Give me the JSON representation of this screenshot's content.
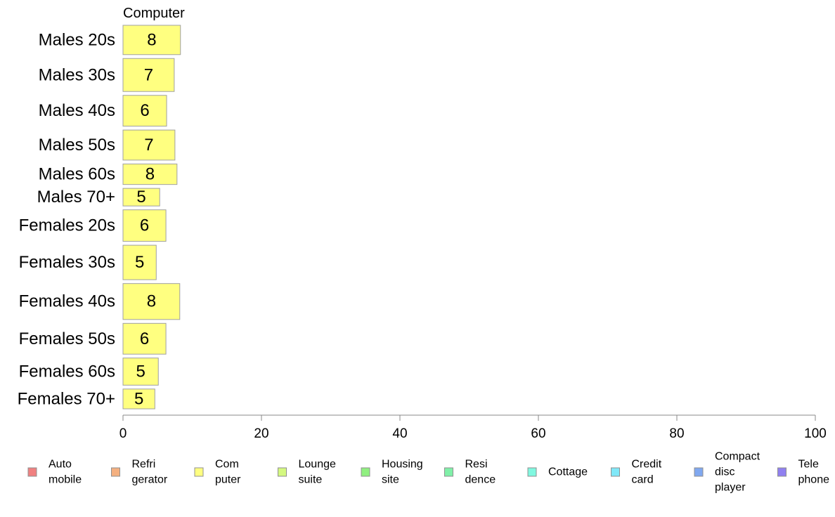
{
  "chart_data": {
    "type": "bar",
    "orientation": "horizontal",
    "panel_title": "Computer",
    "categories": [
      "Males 20s",
      "Males 30s",
      "Males 40s",
      "Males 50s",
      "Males 60s",
      "Males 70+",
      "Females 20s",
      "Females 30s",
      "Females 40s",
      "Females 50s",
      "Females 60s",
      "Females 70+"
    ],
    "values": [
      8,
      7,
      6,
      7,
      8,
      5,
      6,
      5,
      8,
      6,
      5,
      5
    ],
    "bar_width_values": [
      8.3,
      7.4,
      6.3,
      7.5,
      7.8,
      5.3,
      6.2,
      4.8,
      8.2,
      6.2,
      5.1,
      4.6
    ],
    "row_weights": [
      40,
      45,
      42,
      41,
      28,
      24,
      43,
      47,
      49,
      42,
      37,
      27
    ],
    "bar_color": "#ffff80",
    "bar_stroke": "#a0a0a0",
    "xlim": [
      0,
      100
    ],
    "xticks": [
      0,
      20,
      40,
      60,
      80,
      100
    ],
    "legend_position": "bottom",
    "legend": [
      {
        "lines": [
          "Auto",
          "mobile"
        ],
        "color": "#f08080"
      },
      {
        "lines": [
          "Refri",
          "gerator"
        ],
        "color": "#f4b080"
      },
      {
        "lines": [
          "Com",
          "puter"
        ],
        "color": "#ffff80"
      },
      {
        "lines": [
          "Lounge",
          "suite"
        ],
        "color": "#d4f880"
      },
      {
        "lines": [
          "Housing",
          "site"
        ],
        "color": "#90f080"
      },
      {
        "lines": [
          "Resi",
          "dence"
        ],
        "color": "#80f0a8"
      },
      {
        "lines": [
          "Cottage"
        ],
        "color": "#80f8e0"
      },
      {
        "lines": [
          "Credit",
          "card"
        ],
        "color": "#80e8f8"
      },
      {
        "lines": [
          "Compact",
          "disc",
          "player"
        ],
        "color": "#80a8f0"
      },
      {
        "lines": [
          "Tele",
          "phone"
        ],
        "color": "#9080f0"
      }
    ]
  }
}
